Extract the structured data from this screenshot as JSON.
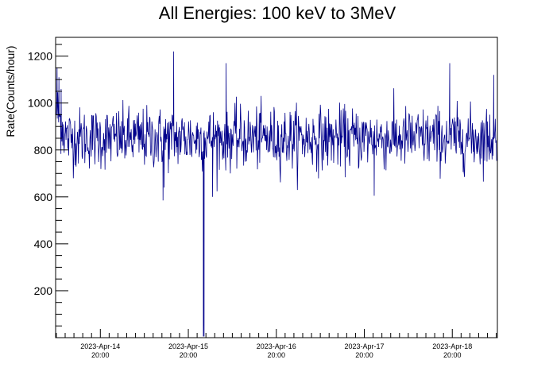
{
  "chart_data": {
    "type": "line",
    "title": "All Energies:  100 keV to 3MeV",
    "xlabel": "",
    "ylabel": "Rate(Counts/hour)",
    "ylim": [
      0,
      1280
    ],
    "yticks": [
      {
        "value": 200,
        "label": "200"
      },
      {
        "value": 400,
        "label": "400"
      },
      {
        "value": 600,
        "label": "600"
      },
      {
        "value": 800,
        "label": "800"
      },
      {
        "value": 1000,
        "label": "1000"
      },
      {
        "value": 1200,
        "label": "1200"
      }
    ],
    "xlim": [
      0,
      120.5
    ],
    "xticks": [
      {
        "value": 12.2,
        "date": "2023-Apr-14",
        "time": "20:00"
      },
      {
        "value": 36.2,
        "date": "2023-Apr-15",
        "time": "20:00"
      },
      {
        "value": 60.2,
        "date": "2023-Apr-16",
        "time": "20:00"
      },
      {
        "value": 84.2,
        "date": "2023-Apr-17",
        "time": "20:00"
      },
      {
        "value": 108.2,
        "date": "2023-Apr-18",
        "time": "20:00"
      }
    ],
    "grid": false,
    "legend": "none",
    "series_color": "#00008b",
    "series": [
      {
        "mean": 850,
        "spread": 65,
        "samples": 960,
        "notable_points": [
          {
            "x": 0.4,
            "y": 1150
          },
          {
            "x": 0.9,
            "y": 1110
          },
          {
            "x": 1.5,
            "y": 1060
          },
          {
            "x": 29.3,
            "y": 585
          },
          {
            "x": 29.6,
            "y": 640
          },
          {
            "x": 29.9,
            "y": 800
          },
          {
            "x": 32.2,
            "y": 1220
          },
          {
            "x": 40.3,
            "y": 5
          },
          {
            "x": 40.4,
            "y": 260
          },
          {
            "x": 40.5,
            "y": 5
          },
          {
            "x": 42.8,
            "y": 600
          },
          {
            "x": 46.5,
            "y": 1170
          },
          {
            "x": 86.9,
            "y": 605
          },
          {
            "x": 107.5,
            "y": 1170
          },
          {
            "x": 119.5,
            "y": 1120
          }
        ]
      }
    ]
  }
}
